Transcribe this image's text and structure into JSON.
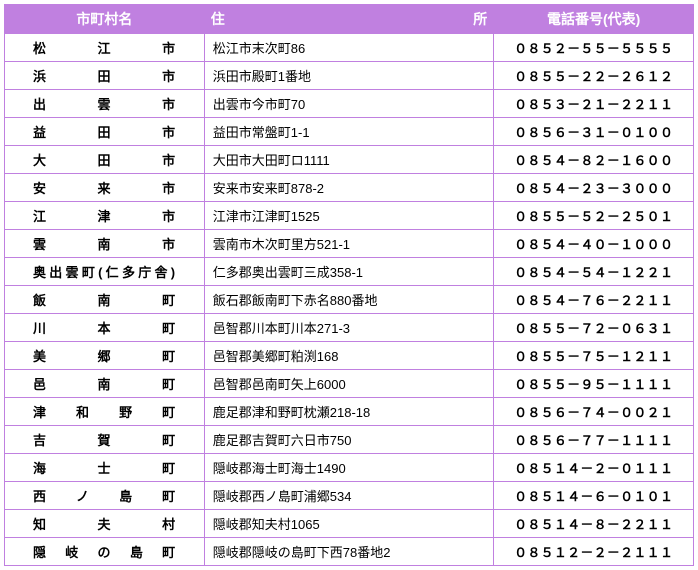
{
  "table": {
    "header_bg": "#c080e0",
    "header_fg": "#ffffff",
    "border_color": "#c080e0",
    "row_bg": "#ffffff",
    "text_color": "#000000",
    "columns": [
      "市町村名",
      "住所",
      "電話番号(代表)"
    ],
    "rows": [
      {
        "name": "松江市",
        "addr": "松江市末次町86",
        "phone": "０８５２－５５－５５５５"
      },
      {
        "name": "浜田市",
        "addr": "浜田市殿町1番地",
        "phone": "０８５５－２２－２６１２"
      },
      {
        "name": "出雲市",
        "addr": "出雲市今市町70",
        "phone": "０８５３－２１－２２１１"
      },
      {
        "name": "益田市",
        "addr": "益田市常盤町1-1",
        "phone": "０８５６－３１－０１００"
      },
      {
        "name": "大田市",
        "addr": "大田市大田町ロ1111",
        "phone": "０８５４－８２－１６００"
      },
      {
        "name": "安来市",
        "addr": "安来市安来町878-2",
        "phone": "０８５４－２３－３０００"
      },
      {
        "name": "江津市",
        "addr": "江津市江津町1525",
        "phone": "０８５５－５２－２５０１"
      },
      {
        "name": "雲南市",
        "addr": "雲南市木次町里方521-1",
        "phone": "０８５４－４０－１０００"
      },
      {
        "name": "奥出雲町(仁多庁舎)",
        "addr": "仁多郡奥出雲町三成358-1",
        "phone": "０８５４－５４－１２２１"
      },
      {
        "name": "飯南町",
        "addr": "飯石郡飯南町下赤名880番地",
        "phone": "０８５４－７６－２２１１"
      },
      {
        "name": "川本町",
        "addr": "邑智郡川本町川本271-3",
        "phone": "０８５５－７２－０６３１"
      },
      {
        "name": "美郷町",
        "addr": "邑智郡美郷町粕渕168",
        "phone": "０８５５－７５－１２１１"
      },
      {
        "name": "邑南町",
        "addr": "邑智郡邑南町矢上6000",
        "phone": "０８５５－９５－１１１１"
      },
      {
        "name": "津和野町",
        "addr": "鹿足郡津和野町枕瀬218-18",
        "phone": "０８５６－７４－００２１"
      },
      {
        "name": "吉賀町",
        "addr": "鹿足郡吉賀町六日市750",
        "phone": "０８５６－７７－１１１１"
      },
      {
        "name": "海士町",
        "addr": "隠岐郡海士町海士1490",
        "phone": "０８５１４－２－０１１１"
      },
      {
        "name": "西ノ島町",
        "addr": "隠岐郡西ノ島町浦郷534",
        "phone": "０８５１４－６－０１０１"
      },
      {
        "name": "知夫村",
        "addr": "隠岐郡知夫村1065",
        "phone": "０８５１４－８－２２１１"
      },
      {
        "name": "隠岐の島町",
        "addr": "隠岐郡隠岐の島町下西78番地2",
        "phone": "０８５１２－２－２１１１"
      }
    ]
  }
}
